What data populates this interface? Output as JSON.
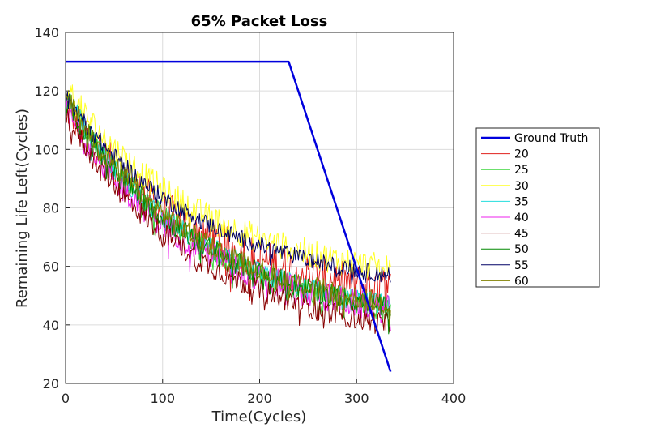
{
  "chart_data": {
    "type": "line",
    "title": "65% Packet Loss",
    "xlabel": "Time(Cycles)",
    "ylabel": "Remaining Life Left(Cycles)",
    "xlim": [
      0,
      400
    ],
    "ylim": [
      20,
      140
    ],
    "xticks": [
      0,
      100,
      200,
      300,
      400
    ],
    "yticks": [
      20,
      40,
      60,
      80,
      100,
      120,
      140
    ],
    "grid": true,
    "legend_position": "right",
    "series": [
      {
        "name": "Ground Truth",
        "color": "#0000dd",
        "width": 2.5,
        "points": [
          [
            0,
            130
          ],
          [
            230,
            130
          ],
          [
            335,
            24
          ]
        ]
      },
      {
        "name": "20",
        "color": "#e0201c",
        "start": 115,
        "end": 52,
        "noise": 7
      },
      {
        "name": "25",
        "color": "#3cd63c",
        "start": 119,
        "end": 45,
        "noise": 4
      },
      {
        "name": "30",
        "color": "#ffff22",
        "start": 121,
        "end": 59,
        "noise": 5
      },
      {
        "name": "35",
        "color": "#22dddd",
        "start": 118,
        "end": 46,
        "noise": 4
      },
      {
        "name": "40",
        "color": "#ee22ee",
        "start": 113,
        "end": 45,
        "noise": 5
      },
      {
        "name": "45",
        "color": "#880000",
        "start": 112,
        "end": 40,
        "noise": 4
      },
      {
        "name": "50",
        "color": "#008800",
        "start": 117,
        "end": 46,
        "noise": 4
      },
      {
        "name": "55",
        "color": "#000066",
        "start": 118,
        "end": 57,
        "noise": 3
      },
      {
        "name": "60",
        "color": "#808000",
        "start": 118,
        "end": 47,
        "noise": 4
      }
    ],
    "x_end": 335
  }
}
